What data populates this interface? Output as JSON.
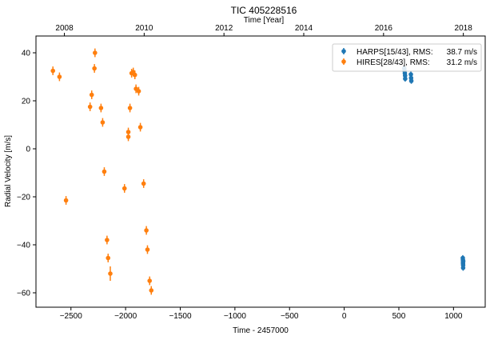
{
  "chart_data": {
    "type": "scatter",
    "title": "TIC 405228516",
    "xlabel": "Time - 2457000",
    "ylabel": "Radial Velocity [m/s]",
    "top_xlabel": "Time [Year]",
    "xlim": [
      -2820,
      1290
    ],
    "ylim": [
      -66,
      47
    ],
    "xticks": [
      -2500,
      -2000,
      -1500,
      -1000,
      -500,
      0,
      500,
      1000
    ],
    "xtick_labels": [
      "−2500",
      "−2000",
      "−1500",
      "−1000",
      "−500",
      "0",
      "500",
      "1000"
    ],
    "yticks": [
      -60,
      -40,
      -20,
      0,
      20,
      40
    ],
    "ytick_labels": [
      "−60",
      "−40",
      "−20",
      "0",
      "20",
      "40"
    ],
    "top_ticks": [
      -2560,
      -1830,
      -1100,
      -370,
      360,
      1090
    ],
    "top_tick_labels": [
      "2008",
      "2010",
      "2012",
      "2014",
      "2016",
      "2018"
    ],
    "grid": false,
    "legend_position": "top-right",
    "series": [
      {
        "name": "HARPS[15/43], RMS:",
        "rms": "38.7 m/s",
        "color": "#1f77b4",
        "points": [
          {
            "x": 550,
            "y": 33.5,
            "err": 1.2
          },
          {
            "x": 552,
            "y": 32.5,
            "err": 1.2
          },
          {
            "x": 555,
            "y": 31.5,
            "err": 1.2
          },
          {
            "x": 557,
            "y": 30.5,
            "err": 1.2
          },
          {
            "x": 558,
            "y": 29.2,
            "err": 1.2
          },
          {
            "x": 610,
            "y": 31.0,
            "err": 1.2
          },
          {
            "x": 612,
            "y": 29.5,
            "err": 1.2
          },
          {
            "x": 614,
            "y": 28.3,
            "err": 1.2
          },
          {
            "x": 1085,
            "y": -45.5,
            "err": 1.2
          },
          {
            "x": 1086,
            "y": -46.3,
            "err": 1.2
          },
          {
            "x": 1087,
            "y": -47.2,
            "err": 1.2
          },
          {
            "x": 1087,
            "y": -47.8,
            "err": 1.2
          },
          {
            "x": 1088,
            "y": -48.5,
            "err": 1.2
          },
          {
            "x": 1088,
            "y": -49.6,
            "err": 1.2
          },
          {
            "x": 1089,
            "y": -46.8,
            "err": 1.2
          }
        ]
      },
      {
        "name": "HIRES[28/43], RMS:",
        "rms": "31.2 m/s",
        "color": "#ff7f0e",
        "points": [
          {
            "x": -2665,
            "y": 32.5,
            "err": 1.8
          },
          {
            "x": -2605,
            "y": 30.0,
            "err": 1.8
          },
          {
            "x": -2545,
            "y": -21.5,
            "err": 1.8
          },
          {
            "x": -2325,
            "y": 17.5,
            "err": 1.8
          },
          {
            "x": -2310,
            "y": 22.5,
            "err": 1.8
          },
          {
            "x": -2280,
            "y": 40.0,
            "err": 1.8
          },
          {
            "x": -2285,
            "y": 33.5,
            "err": 1.8
          },
          {
            "x": -2225,
            "y": 17.0,
            "err": 1.8
          },
          {
            "x": -2210,
            "y": 11.0,
            "err": 1.8
          },
          {
            "x": -2195,
            "y": -9.5,
            "err": 1.8
          },
          {
            "x": -2170,
            "y": -38.0,
            "err": 1.8
          },
          {
            "x": -2160,
            "y": -45.5,
            "err": 1.8
          },
          {
            "x": -2140,
            "y": -52.0,
            "err": 3.0
          },
          {
            "x": -2010,
            "y": -16.5,
            "err": 1.8
          },
          {
            "x": -1975,
            "y": 7.0,
            "err": 1.8
          },
          {
            "x": -1975,
            "y": 5.0,
            "err": 1.8
          },
          {
            "x": -1960,
            "y": 17.0,
            "err": 1.8
          },
          {
            "x": -1945,
            "y": 31.5,
            "err": 1.8
          },
          {
            "x": -1930,
            "y": 32.0,
            "err": 1.8
          },
          {
            "x": -1915,
            "y": 30.8,
            "err": 1.8
          },
          {
            "x": -1905,
            "y": 25.0,
            "err": 1.8
          },
          {
            "x": -1880,
            "y": 24.0,
            "err": 1.8
          },
          {
            "x": -1865,
            "y": 9.0,
            "err": 1.8
          },
          {
            "x": -1835,
            "y": -14.5,
            "err": 1.8
          },
          {
            "x": -1810,
            "y": -34.0,
            "err": 1.8
          },
          {
            "x": -1800,
            "y": -42.0,
            "err": 1.8
          },
          {
            "x": -1780,
            "y": -55.0,
            "err": 1.8
          },
          {
            "x": -1765,
            "y": -59.0,
            "err": 1.8
          }
        ]
      }
    ]
  }
}
